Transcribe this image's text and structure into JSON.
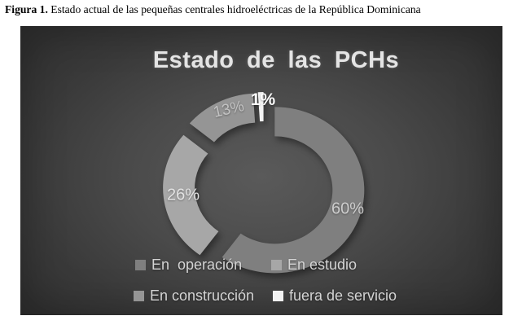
{
  "caption": {
    "label": "Figura 1.",
    "text": " Estado actual de las pequeñas centrales hidroeléctricas de la República Dominicana"
  },
  "chart_data": {
    "type": "pie",
    "subtype": "exploded-doughnut",
    "title": "Estado de las PCHs",
    "categories": [
      "En  operación",
      "En estudio",
      "En construcción",
      "fuera de servicio"
    ],
    "values": [
      60,
      26,
      13,
      1
    ],
    "unit": "%",
    "labels": [
      "60%",
      "26%",
      "13%",
      "1%"
    ],
    "colors": [
      "#7f7f7f",
      "#a7a7a7",
      "#959595",
      "#f2f2f2"
    ],
    "label_colors": [
      "#cdcdcd",
      "#e3e3e3",
      "#c2c2c2",
      "#ffffff"
    ],
    "start_angle_deg": 0,
    "direction": "clockwise",
    "legend_position": "bottom",
    "background_style": "dark-gray-radial-gradient"
  },
  "theme": {
    "title_color": "#e4e4e4",
    "legend_text_color": "#d4d4d4",
    "chart_bg_center": "#5a5a5a",
    "chart_bg_edge": "#323232"
  }
}
